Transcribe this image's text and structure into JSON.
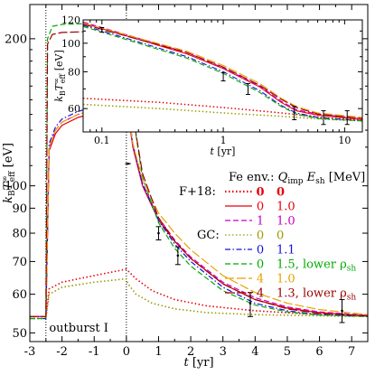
{
  "chart_data": [
    {
      "type": "line",
      "scale": "log-y",
      "xlabel": "t  [yr]",
      "ylabel": "k_B T_eff^∞ [eV]",
      "xlim": [
        -3,
        7.5
      ],
      "ylim": [
        48,
        235
      ],
      "x_ticks": [
        "-3",
        "-2",
        "-1",
        "0",
        "1",
        "2",
        "3",
        "4",
        "5",
        "6",
        "7"
      ],
      "y_ticks": [
        "50",
        "60",
        "70",
        "80",
        "90",
        "100",
        "200"
      ],
      "annotation": "outburst I",
      "vlines": [
        -2.5,
        0
      ],
      "colors": {
        "red": "#e8000b",
        "magenta": "#c800c8",
        "olive": "#9a9a00",
        "blue": "#1010e0",
        "green": "#00aa00",
        "orange": "#e8a000",
        "darkred": "#9a0000"
      },
      "legend": {
        "header": "Fe env.:",
        "header_q": "Q",
        "header_q_sub": "imp",
        "header_e": "E",
        "header_e_sub": "sh",
        "header_unit": "[MeV]",
        "group_f18": "F+18:",
        "group_gc": "GC:",
        "lower_rho": ", lower ρ",
        "lower_rho_sub": "sh",
        "entries": [
          {
            "q": "0",
            "e": "0",
            "color": "red",
            "dash": "dot",
            "bold": true
          },
          {
            "q": "0",
            "e": "1.0",
            "color": "red",
            "dash": "solid"
          },
          {
            "q": "1",
            "e": "1.0",
            "color": "magenta",
            "dash": "dash"
          },
          {
            "q": "0",
            "e": "0",
            "color": "olive",
            "dash": "dot"
          },
          {
            "q": "0",
            "e": "1.1",
            "color": "blue",
            "dash": "dashdot"
          },
          {
            "q": "0",
            "e": "1.5",
            "color": "green",
            "dash": "dash",
            "lower": true
          },
          {
            "q": "4",
            "e": "1.0",
            "color": "orange",
            "dash": "dashlong"
          },
          {
            "q": "4",
            "e": "1.3",
            "color": "darkred",
            "dash": "dashlong",
            "lower": true
          }
        ]
      },
      "series": [
        {
          "color": "red",
          "dash": "dot",
          "x": [
            -3,
            -2.55,
            -2.5,
            -2.4,
            -2.0,
            -1.0,
            -0.01,
            0.05,
            0.3,
            0.8,
            1.5,
            2.5,
            4.0,
            6.0,
            7.5
          ],
          "y": [
            54,
            54,
            54,
            61.5,
            63.5,
            65.5,
            67.5,
            67,
            64.5,
            61,
            58.5,
            56.8,
            55.5,
            54.5,
            54.2
          ]
        },
        {
          "color": "red",
          "dash": "solid",
          "x": [
            -3,
            -2.55,
            -2.5,
            -2.4,
            -2.2,
            -2.0,
            -1.5,
            -1.0,
            -0.5,
            -0.01,
            0.05,
            0.2,
            0.5,
            1.0,
            1.5,
            2.0,
            3.0,
            4.0,
            5.0,
            6.0,
            7.5
          ],
          "y": [
            54,
            54,
            54,
            118,
            128,
            133,
            138,
            141,
            143,
            145,
            142,
            120,
            100,
            85,
            77,
            71,
            63,
            58.5,
            56.2,
            55,
            54.2
          ]
        },
        {
          "color": "magenta",
          "dash": "dash",
          "x": [
            -3,
            -2.55,
            -2.5,
            -2.4,
            -2.2,
            -2.0,
            -1.5,
            -1.0,
            -0.5,
            -0.01,
            0.05,
            0.2,
            0.5,
            1.0,
            1.5,
            2.0,
            3.0,
            4.0,
            5.0,
            6.0,
            7.5
          ],
          "y": [
            54,
            54,
            54,
            120,
            130,
            135,
            140,
            143,
            145,
            147,
            144,
            121,
            101,
            86,
            77.5,
            71.5,
            63.5,
            59,
            56.5,
            55.2,
            54.3
          ]
        },
        {
          "color": "olive",
          "dash": "dot",
          "x": [
            -3,
            -2.55,
            -2.5,
            -2.4,
            -2.0,
            -1.0,
            -0.01,
            0.05,
            0.3,
            0.8,
            1.5,
            2.5,
            4.0,
            6.0,
            7.5
          ],
          "y": [
            53.5,
            53.5,
            53.5,
            60,
            62,
            63.5,
            64.5,
            63,
            60,
            57.5,
            56,
            55,
            54.5,
            54.2,
            54
          ]
        },
        {
          "color": "blue",
          "dash": "dashdot",
          "x": [
            -3,
            -2.55,
            -2.5,
            -2.4,
            -2.2,
            -2.0,
            -1.5,
            -1.0,
            -0.5,
            -0.01,
            0.05,
            0.2,
            0.5,
            1.0,
            1.5,
            2.0,
            3.0,
            4.0,
            5.0,
            6.0,
            7.5
          ],
          "y": [
            53.5,
            53.5,
            53.5,
            122,
            132,
            137,
            142,
            145,
            147,
            149,
            145,
            122,
            101,
            85,
            76,
            70,
            62,
            57.5,
            55.5,
            54.5,
            54
          ]
        },
        {
          "color": "green",
          "dash": "dash",
          "x": [
            -3,
            -2.55,
            -2.5,
            -2.45,
            -2.3,
            -2.0,
            -1.0,
            -0.01,
            0.05,
            0.2,
            0.5,
            1.0,
            1.5,
            2.0,
            3.0,
            4.0,
            5.0,
            6.0,
            7.5
          ],
          "y": [
            53.5,
            53.5,
            53.5,
            200,
            212,
            214,
            215,
            216,
            212,
            140,
            104,
            84,
            74.5,
            68.5,
            61,
            57,
            55.2,
            54.4,
            54
          ]
        },
        {
          "color": "orange",
          "dash": "dashlong",
          "x": [
            -3,
            -2.55,
            -2.5,
            -2.4,
            -2.2,
            -2.0,
            -1.5,
            -1.0,
            -0.5,
            -0.01,
            0.05,
            0.2,
            0.5,
            1.0,
            1.5,
            2.0,
            3.0,
            4.0,
            5.0,
            6.0,
            7.5
          ],
          "y": [
            54,
            54,
            54,
            120,
            130,
            135,
            140,
            143,
            145,
            147,
            144,
            122,
            103,
            88,
            80,
            74,
            65.5,
            60.5,
            57.5,
            55.8,
            54.5
          ]
        },
        {
          "color": "darkred",
          "dash": "dashlong",
          "x": [
            -3,
            -2.55,
            -2.5,
            -2.45,
            -2.3,
            -2.0,
            -1.0,
            -0.01,
            0.05,
            0.2,
            0.5,
            1.0,
            1.5,
            2.0,
            3.0,
            4.0,
            5.0,
            6.0,
            7.5
          ],
          "y": [
            54,
            54,
            54,
            195,
            204,
            206,
            207,
            208,
            204,
            140,
            106,
            86,
            77,
            71,
            63,
            58.5,
            56,
            54.8,
            54.2
          ]
        }
      ],
      "observations": {
        "x": [
          0.05,
          1.0,
          1.6,
          3.85,
          6.7
        ],
        "y": [
          111,
          80,
          72,
          57.5,
          55.5
        ],
        "ylo": [
          111,
          77.5,
          69,
          54,
          52.5
        ],
        "yhi": [
          111,
          82.5,
          75,
          60.5,
          58.5
        ]
      }
    },
    {
      "type": "line",
      "scale": "log-log",
      "xlabel": "t  [yr]",
      "ylabel": "k_B T_eff^∞ [eV]",
      "xlim": [
        0.07,
        14
      ],
      "ylim": [
        50,
        120
      ],
      "x_ticks": [
        "0.1",
        "1",
        "10"
      ],
      "y_ticks": [
        "60",
        "80",
        "100",
        "120"
      ],
      "series": [
        {
          "color": "red",
          "dash": "dot",
          "x": [
            0.07,
            0.3,
            1,
            3,
            8,
            14
          ],
          "y": [
            65,
            63,
            60.5,
            58,
            55.5,
            55
          ]
        },
        {
          "color": "olive",
          "dash": "dot",
          "x": [
            0.07,
            0.3,
            1,
            3,
            8,
            14
          ],
          "y": [
            62,
            60,
            58,
            56.5,
            55,
            54.5
          ]
        },
        {
          "color": "red",
          "dash": "solid",
          "x": [
            0.07,
            0.2,
            0.5,
            1,
            2,
            3,
            4,
            6,
            14
          ],
          "y": [
            117,
            103,
            92,
            82,
            71,
            63,
            59,
            57,
            55
          ]
        },
        {
          "color": "magenta",
          "dash": "dash",
          "x": [
            0.07,
            0.2,
            0.5,
            1,
            2,
            3,
            4,
            6,
            14
          ],
          "y": [
            118,
            104,
            93,
            82.5,
            71.5,
            63.5,
            59.5,
            57.5,
            55.5
          ]
        },
        {
          "color": "blue",
          "dash": "dashdot",
          "x": [
            0.07,
            0.2,
            0.5,
            1,
            2,
            3,
            4,
            6,
            14
          ],
          "y": [
            115,
            101,
            90,
            80,
            69,
            61.5,
            58,
            56,
            54.5
          ]
        },
        {
          "color": "green",
          "dash": "dash",
          "x": [
            0.07,
            0.2,
            0.5,
            1,
            2,
            3,
            4,
            6,
            14
          ],
          "y": [
            114,
            100,
            89,
            79,
            68,
            61,
            57.5,
            55.5,
            54.5
          ]
        },
        {
          "color": "orange",
          "dash": "dashlong",
          "x": [
            0.07,
            0.2,
            0.5,
            1,
            2,
            3,
            4,
            6,
            14
          ],
          "y": [
            117,
            104,
            94,
            84,
            73,
            65,
            61,
            58,
            56
          ]
        },
        {
          "color": "darkred",
          "dash": "dashlong",
          "x": [
            0.07,
            0.2,
            0.5,
            1,
            2,
            3,
            4,
            6,
            14
          ],
          "y": [
            116,
            103,
            93,
            83,
            72,
            64.5,
            60.5,
            57.5,
            55.5
          ]
        }
      ],
      "observations": {
        "x": [
          0.1,
          1.0,
          1.6,
          3.85,
          6.7,
          10.5
        ],
        "y": [
          111,
          77,
          70,
          58,
          56,
          56
        ],
        "ylo": [
          109,
          74.5,
          67,
          55,
          53,
          53
        ],
        "yhi": [
          113,
          79.5,
          73,
          61,
          59,
          59
        ]
      }
    }
  ]
}
